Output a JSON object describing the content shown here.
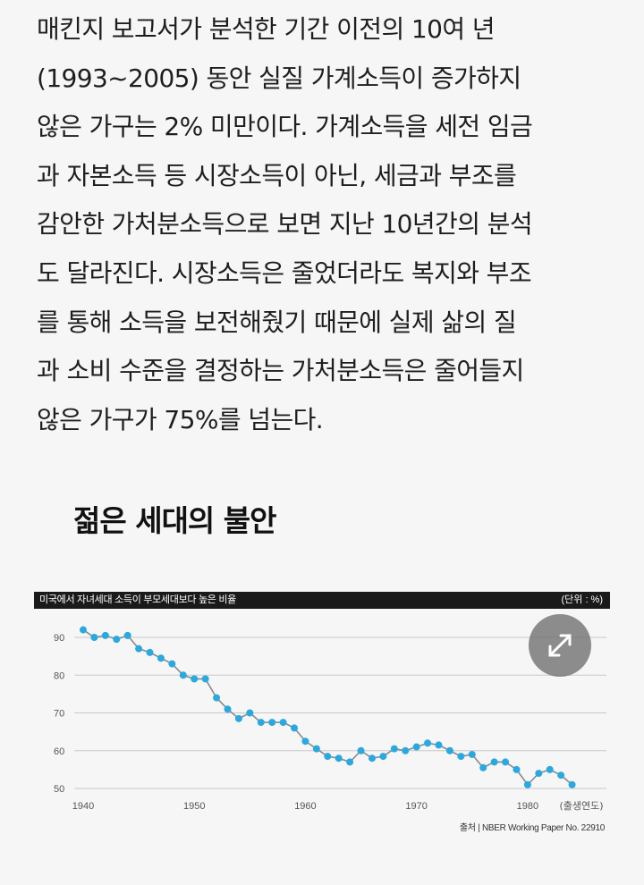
{
  "article": {
    "lines": [
      "매킨지 보고서가 분석한 기간 이전의 10여 년",
      "(1993~2005) 동안 실질 가계소득이 증가하지",
      "않은 가구는 2% 미만이다. 가계소득을 세전 임금",
      "과 자본소득 등 시장소득이 아닌, 세금과 부조를",
      "감안한 가처분소득으로 보면 지난 10년간의 분석",
      "도 달라진다. 시장소득은 줄었더라도 복지와 부조",
      "를 통해 소득을 보전해줬기 때문에 실제 삶의 질",
      "과 소비 수준을 결정하는 가처분소득은 줄어들지",
      "않은 가구가 75%를 넘는다."
    ]
  },
  "section": {
    "heading": "젊은 세대의 불안"
  },
  "figure": {
    "title": "미국에서 자녀세대 소득이 부모세대보다 높은 비율",
    "unit": "(단위 : %)",
    "source": "출처 | NBER Working Paper No. 22910",
    "expand_icon": "expand-arrows-icon"
  },
  "chart_data": {
    "type": "line",
    "title": "미국에서 자녀세대 소득이 부모세대보다 높은 비율",
    "xlabel": "(출생연도)",
    "ylabel": "",
    "unit": "(단위 : %)",
    "xlim": [
      1940,
      1985
    ],
    "ylim": [
      50,
      92
    ],
    "yticks": [
      90,
      80,
      70,
      60,
      50
    ],
    "xticks": [
      1940,
      1950,
      1960,
      1970,
      1980
    ],
    "grid": true,
    "line_color": "#8a8a8a",
    "marker_color": "#29a9e0",
    "series": [
      {
        "x": [
          1940,
          1941,
          1942,
          1943,
          1944,
          1945,
          1946,
          1947,
          1948,
          1949,
          1950,
          1951,
          1952,
          1953,
          1954,
          1955,
          1956,
          1957,
          1958,
          1959,
          1960,
          1961,
          1962,
          1963,
          1964,
          1965,
          1966,
          1967,
          1968,
          1969,
          1970,
          1971,
          1972,
          1973,
          1974,
          1975,
          1976,
          1977,
          1978,
          1979,
          1980,
          1981,
          1982,
          1983,
          1984
        ],
        "y": [
          92,
          90,
          90.5,
          89.5,
          90.5,
          87,
          86,
          84.5,
          83,
          80,
          79,
          79,
          74,
          71,
          68.5,
          70,
          67.5,
          67.5,
          67.5,
          66,
          62.5,
          60.5,
          58.5,
          58,
          57,
          60,
          58,
          58.5,
          60.5,
          60,
          61,
          62,
          61.5,
          60,
          58.5,
          59,
          55.5,
          57,
          57,
          55,
          51,
          54,
          55,
          53.5,
          51
        ]
      }
    ]
  }
}
